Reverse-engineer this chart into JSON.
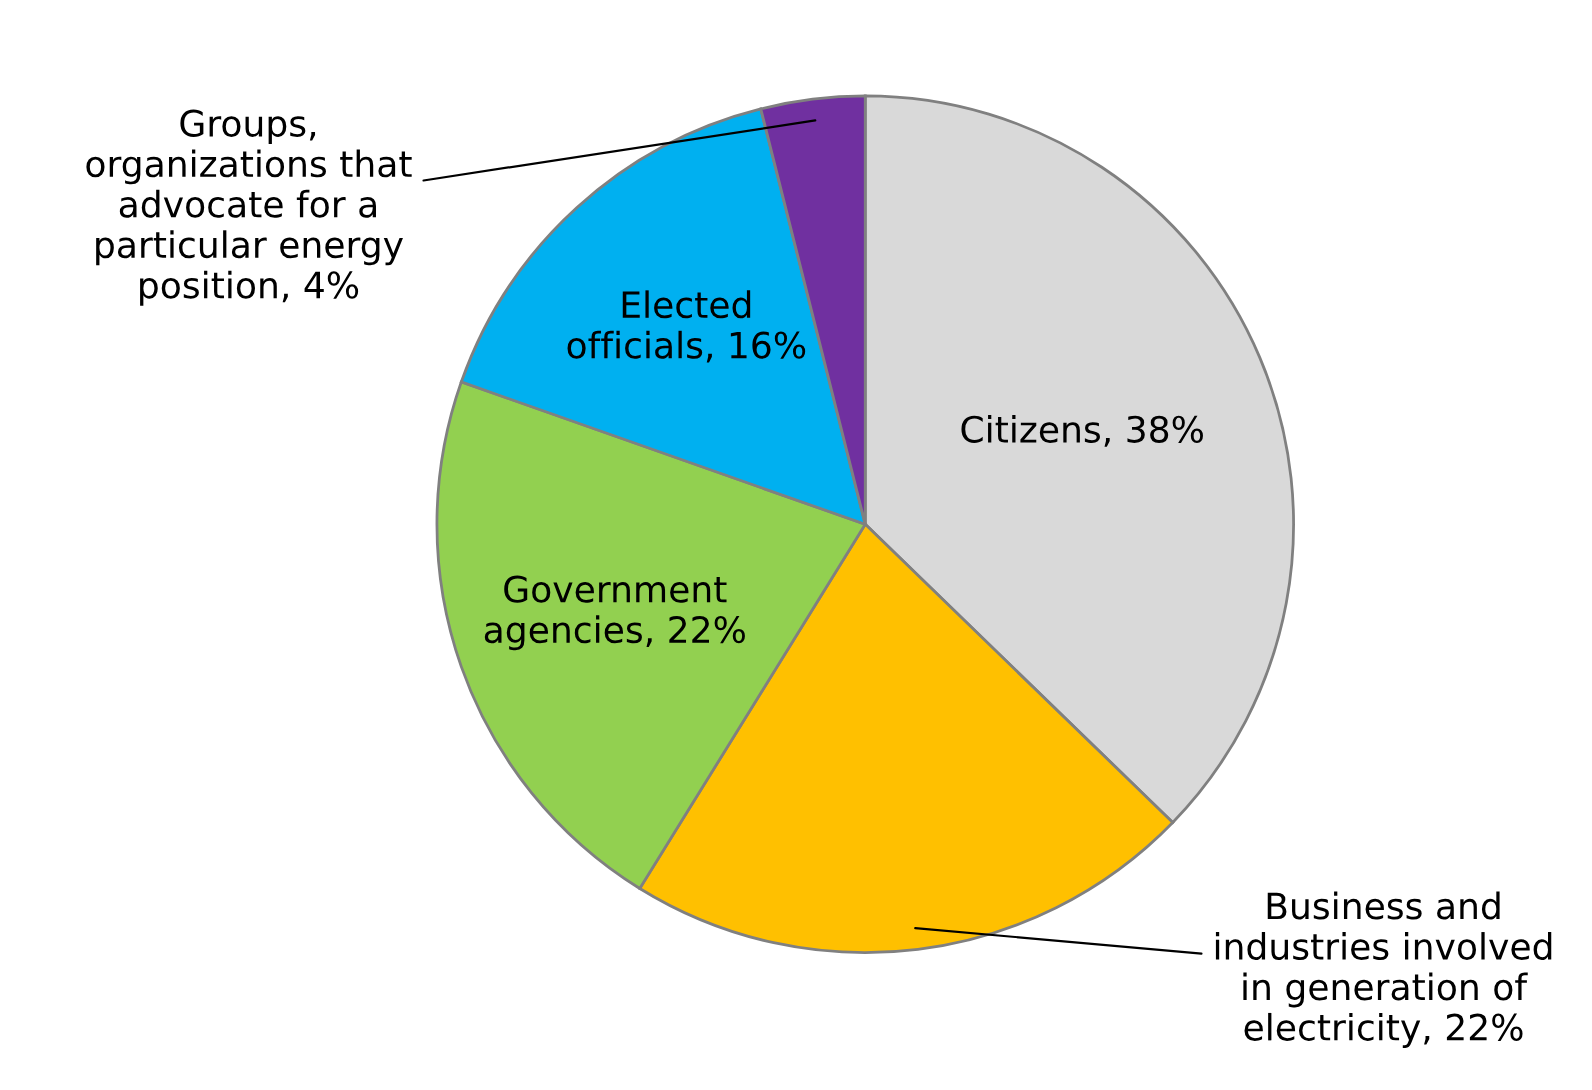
{
  "chart_data": {
    "type": "pie",
    "categories": [
      "Citizens",
      "Business and\nindustries involved\nin generation of\nelectricity",
      "Government\nagencies",
      "Elected\nofficials",
      "Groups,\norganizations that\nadvocate for a\nparticular energy\nposition"
    ],
    "values": [
      38,
      22,
      22,
      16,
      4
    ],
    "value_labels": [
      "38%",
      "22%",
      "22%",
      "16%",
      "4%"
    ],
    "colors": [
      "#d9d9d9",
      "#ffc000",
      "#92d050",
      "#00b0f0",
      "#7030a0"
    ],
    "legend": false
  }
}
